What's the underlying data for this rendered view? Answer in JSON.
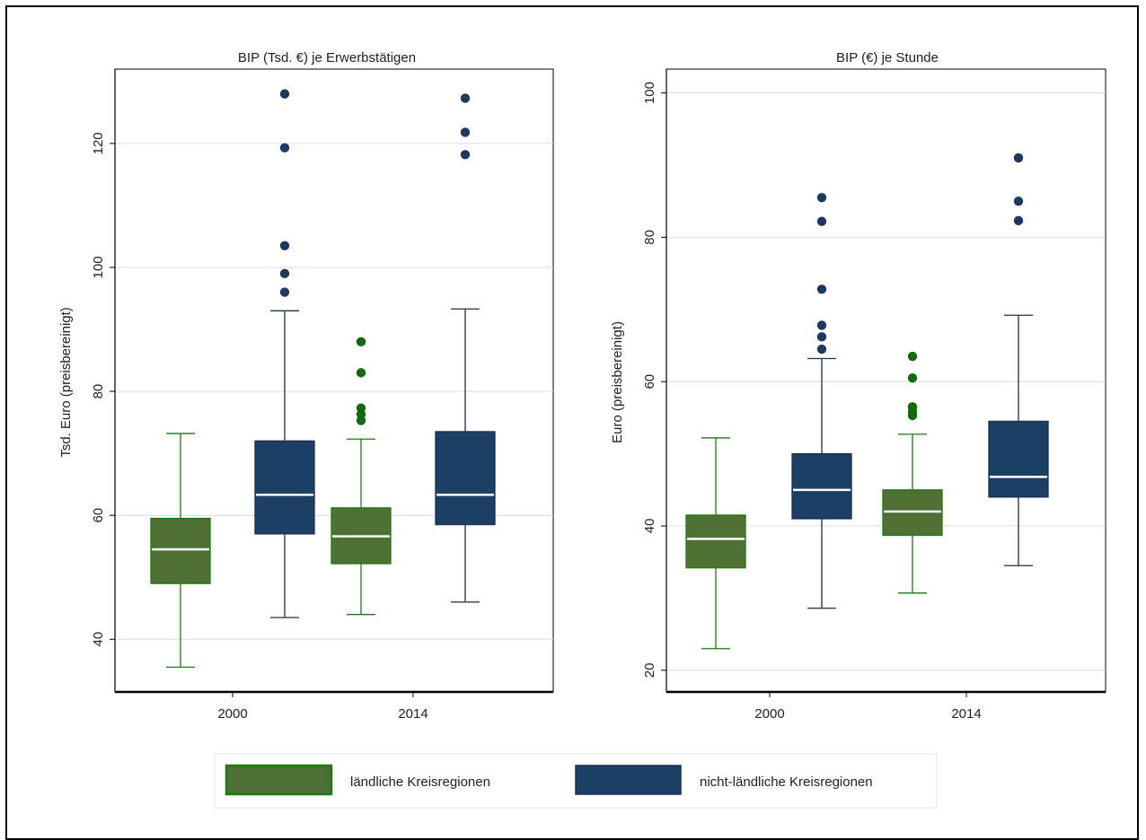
{
  "colors": {
    "rural_fill": "#4f7033",
    "rural_stroke": "#1e7a12",
    "rural_outlier": "#106b0c",
    "urban_fill": "#1c3f66",
    "urban_stroke": "#1b2f4e",
    "urban_outlier": "#1c3a61",
    "median": "#ffffff",
    "grid": "#dcdcdc"
  },
  "legend": {
    "rural_label": "ländliche Kreisregionen",
    "urban_label": "nicht-ländliche Kreisregionen"
  },
  "chart_data": [
    {
      "type": "box",
      "title": "BIP (Tsd. €) je Erwerbstätigen",
      "xlabel": "",
      "ylabel": "Tsd. Euro (preisbereinigt)",
      "ylim": [
        31.5,
        132
      ],
      "yticks": [
        40,
        60,
        80,
        100,
        120
      ],
      "grid": true,
      "categories": [
        "2000",
        "2014"
      ],
      "series": [
        {
          "name": "ländliche Kreisregionen",
          "boxes": [
            {
              "whisker_low": 35.5,
              "q1": 49,
              "median": 54.5,
              "q3": 59.5,
              "whisker_high": 73.2,
              "outliers": []
            },
            {
              "whisker_low": 44,
              "q1": 52.2,
              "median": 56.6,
              "q3": 61.2,
              "whisker_high": 72.3,
              "outliers": [
                75.3,
                76.3,
                77.3,
                83,
                88
              ]
            }
          ]
        },
        {
          "name": "nicht-ländliche Kreisregionen",
          "boxes": [
            {
              "whisker_low": 43.5,
              "q1": 57,
              "median": 63.3,
              "q3": 72,
              "whisker_high": 93,
              "outliers": [
                96,
                99,
                103.5,
                119.3,
                128
              ]
            },
            {
              "whisker_low": 46,
              "q1": 58.5,
              "median": 63.3,
              "q3": 73.5,
              "whisker_high": 93.3,
              "outliers": [
                118.2,
                121.8,
                127.3
              ]
            }
          ]
        }
      ]
    },
    {
      "type": "box",
      "title": "BIP (€) je Stunde",
      "xlabel": "",
      "ylabel": "Euro (preisbereinigt)",
      "ylim": [
        17,
        103.3
      ],
      "yticks": [
        20,
        40,
        60,
        80,
        100
      ],
      "grid": true,
      "categories": [
        "2000",
        "2014"
      ],
      "series": [
        {
          "name": "ländliche Kreisregionen",
          "boxes": [
            {
              "whisker_low": 23,
              "q1": 34.2,
              "median": 38.2,
              "q3": 41.5,
              "whisker_high": 52.2,
              "outliers": []
            },
            {
              "whisker_low": 30.7,
              "q1": 38.7,
              "median": 42,
              "q3": 45,
              "whisker_high": 52.7,
              "outliers": [
                55.3,
                55.8,
                56.5,
                60.5,
                63.5
              ]
            }
          ]
        },
        {
          "name": "nicht-ländliche Kreisregionen",
          "boxes": [
            {
              "whisker_low": 28.6,
              "q1": 41,
              "median": 45,
              "q3": 50,
              "whisker_high": 63.2,
              "outliers": [
                64.5,
                66.2,
                67.8,
                72.8,
                82.2,
                85.5
              ]
            },
            {
              "whisker_low": 34.5,
              "q1": 44,
              "median": 46.8,
              "q3": 54.5,
              "whisker_high": 69.2,
              "outliers": [
                82.3,
                85,
                91
              ]
            }
          ]
        }
      ]
    }
  ]
}
